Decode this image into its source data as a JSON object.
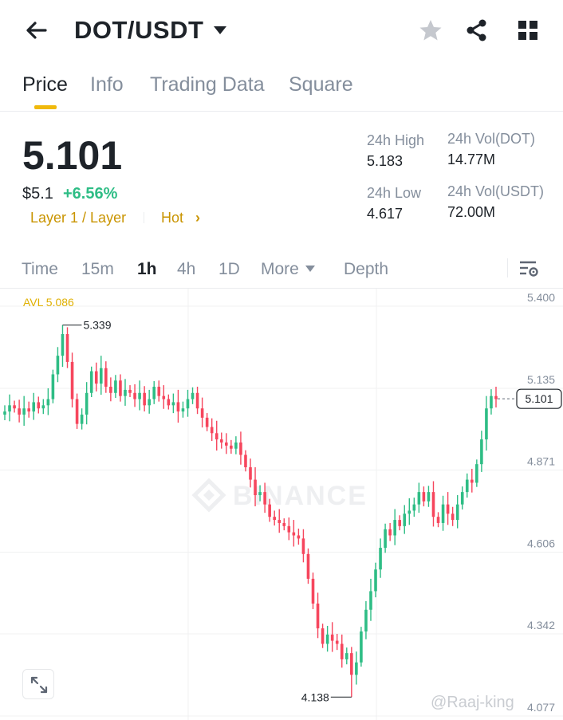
{
  "header": {
    "pair": "DOT/USDT",
    "icons": [
      "back-arrow-icon",
      "caret-down-icon",
      "star-icon",
      "share-icon",
      "grid-icon"
    ]
  },
  "tabs": [
    "Price",
    "Info",
    "Trading Data",
    "Square"
  ],
  "active_tab": "Price",
  "ticker": {
    "last_price": "5.101",
    "usd_price": "$5.1",
    "change": "+6.56%",
    "tag_layer": "Layer 1 / Layer",
    "tag_hot": "Hot",
    "tag_hot_arrow": "›"
  },
  "stats": {
    "high_label": "24h High",
    "high_value": "5.183",
    "low_label": "24h Low",
    "low_value": "4.617",
    "vol_dot_label": "24h Vol(DOT)",
    "vol_dot_value": "14.77M",
    "vol_usdt_label": "24h Vol(USDT)",
    "vol_usdt_value": "72.00M"
  },
  "intervals": {
    "time": "Time",
    "m15": "15m",
    "h1": "1h",
    "h4": "4h",
    "d1": "1D",
    "more": "More",
    "depth": "Depth",
    "active": "1h"
  },
  "colors": {
    "up": "#2ebd85",
    "down": "#f6465d",
    "accent": "#f0b90b",
    "avl": "#e0b000",
    "muted": "#848e9c"
  },
  "chart_data": {
    "type": "candlestick",
    "avl_label": "AVL 5.086",
    "y_ticks": [
      "5.400",
      "5.135",
      "4.871",
      "4.606",
      "4.342",
      "4.077"
    ],
    "ylim": [
      4.077,
      5.4
    ],
    "high_marker": "5.339",
    "low_marker": "4.138",
    "last_price_marker": "5.101",
    "watermark": "BINANCE",
    "series": [
      {
        "name": "close",
        "values": [
          5.06,
          5.08,
          5.07,
          5.05,
          5.07,
          5.06,
          5.09,
          5.07,
          5.08,
          5.1,
          5.18,
          5.24,
          5.31,
          5.22,
          5.1,
          5.02,
          5.05,
          5.12,
          5.19,
          5.15,
          5.2,
          5.14,
          5.12,
          5.16,
          5.11,
          5.13,
          5.12,
          5.1,
          5.12,
          5.08,
          5.1,
          5.14,
          5.11,
          5.1,
          5.08,
          5.09,
          5.06,
          5.07,
          5.1,
          5.12,
          5.07,
          5.04,
          5.01,
          4.99,
          4.97,
          4.96,
          4.95,
          4.94,
          4.96,
          4.92,
          4.88,
          4.84,
          4.79,
          4.8,
          4.76,
          4.72,
          4.71,
          4.7,
          4.69,
          4.67,
          4.66,
          4.65,
          4.6,
          4.52,
          4.44,
          4.36,
          4.31,
          4.34,
          4.32,
          4.31,
          4.26,
          4.28,
          4.21,
          4.25,
          4.35,
          4.42,
          4.48,
          4.55,
          4.62,
          4.68,
          4.66,
          4.71,
          4.69,
          4.73,
          4.74,
          4.76,
          4.8,
          4.77,
          4.8,
          4.72,
          4.7,
          4.76,
          4.73,
          4.71,
          4.76,
          4.8,
          4.84,
          4.83,
          4.89,
          4.97,
          5.07,
          5.11,
          5.1
        ]
      }
    ]
  },
  "watermark_user": "@Raaj-king"
}
